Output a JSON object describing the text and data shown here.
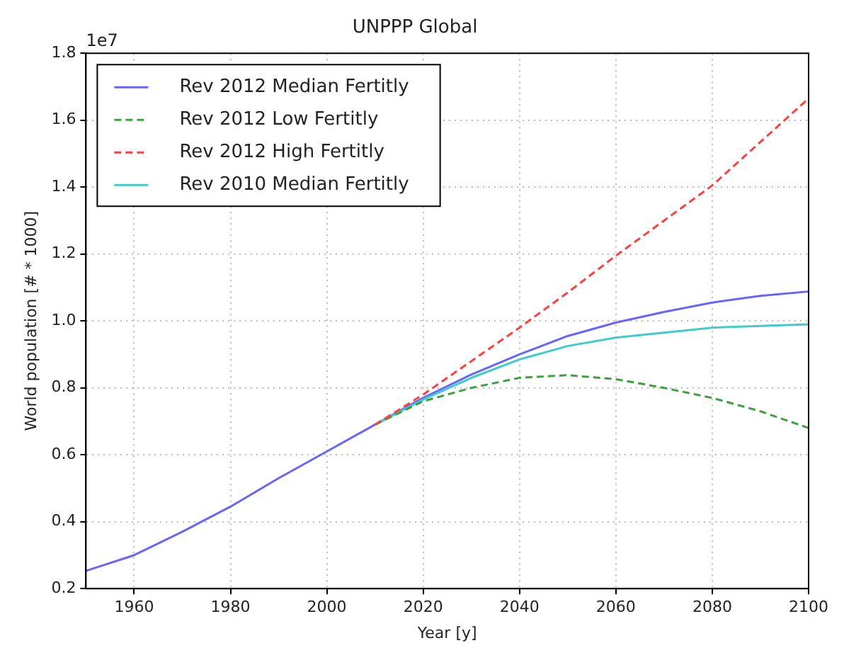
{
  "chart_data": {
    "type": "line",
    "title": "UNPPP Global",
    "xlabel": "Year [y]",
    "ylabel": "World population [# * 1000]",
    "annotations": [
      "1e7"
    ],
    "x": [
      1950,
      1960,
      1970,
      1980,
      1990,
      2000,
      2010,
      2020,
      2030,
      2040,
      2050,
      2060,
      2070,
      2080,
      2090,
      2100
    ],
    "series": [
      {
        "name": "Rev 2012 Median Fertitly",
        "color": "#6666ff",
        "line_style": "solid",
        "values": [
          0.253,
          0.3,
          0.37,
          0.445,
          0.53,
          0.61,
          0.69,
          0.77,
          0.84,
          0.9,
          0.955,
          0.995,
          1.027,
          1.055,
          1.075,
          1.088
        ]
      },
      {
        "name": "Rev 2012 Low Fertitly",
        "color": "#40a040",
        "line_style": "dashed",
        "values": [
          null,
          null,
          null,
          null,
          null,
          null,
          0.69,
          0.76,
          0.8,
          0.83,
          0.838,
          0.826,
          0.8,
          0.77,
          0.73,
          0.68
        ]
      },
      {
        "name": "Rev 2012 High Fertitly",
        "color": "#ff4040",
        "line_style": "dashed",
        "values": [
          null,
          null,
          null,
          null,
          null,
          null,
          0.69,
          0.78,
          0.88,
          0.98,
          1.085,
          1.195,
          1.3,
          1.405,
          1.535,
          1.665
        ]
      },
      {
        "name": "Rev 2010 Median Fertitly",
        "color": "#40cccc",
        "line_style": "solid",
        "values": [
          null,
          null,
          null,
          null,
          null,
          null,
          0.69,
          0.765,
          0.83,
          0.885,
          0.925,
          0.95,
          0.965,
          0.98,
          0.985,
          0.99
        ]
      }
    ],
    "xlim": [
      1950,
      2100
    ],
    "xticks": [
      1960,
      1980,
      2000,
      2020,
      2040,
      2060,
      2080,
      2100
    ],
    "ylim": [
      0.2,
      1.8
    ],
    "yticks": [
      {
        "value": 0.2,
        "label": "0.2"
      },
      {
        "value": 0.4,
        "label": "0.4"
      },
      {
        "value": 0.6,
        "label": "0.6"
      },
      {
        "value": 0.8,
        "label": "0.8"
      },
      {
        "value": 1.0,
        "label": "1.0"
      },
      {
        "value": 1.2,
        "label": "1.2"
      },
      {
        "value": 1.4,
        "label": "1.4"
      },
      {
        "value": 1.6,
        "label": "1.6"
      },
      {
        "value": 1.8,
        "label": "1.8"
      }
    ],
    "grid": true,
    "legend": "top left",
    "marker": "none"
  }
}
